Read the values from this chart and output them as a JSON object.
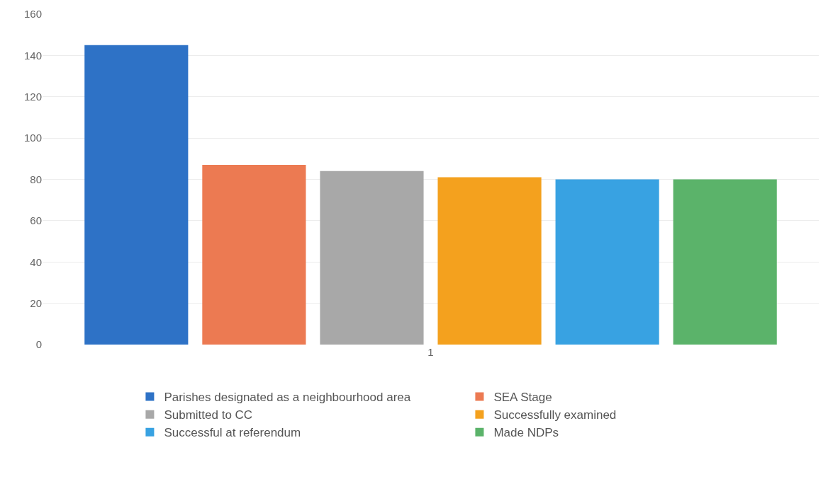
{
  "chart_data": {
    "type": "bar",
    "categories": [
      "1"
    ],
    "series": [
      {
        "name": "Parishes designated as a neighbourhood area",
        "color": "#2e72c6",
        "values": [
          145
        ]
      },
      {
        "name": "SEA Stage",
        "color": "#ec7a52",
        "values": [
          87
        ]
      },
      {
        "name": "Submitted to CC",
        "color": "#a8a8a8",
        "values": [
          84
        ]
      },
      {
        "name": "Successfully examined",
        "color": "#f4a11e",
        "values": [
          81
        ]
      },
      {
        "name": "Successful at referendum",
        "color": "#38a2e2",
        "values": [
          80
        ]
      },
      {
        "name": "Made NDPs",
        "color": "#5bb36a",
        "values": [
          80
        ]
      }
    ],
    "ylim": [
      0,
      160
    ],
    "yticks": [
      0,
      20,
      40,
      60,
      80,
      100,
      120,
      140,
      160
    ],
    "grid": "y",
    "legend": "bottom"
  }
}
